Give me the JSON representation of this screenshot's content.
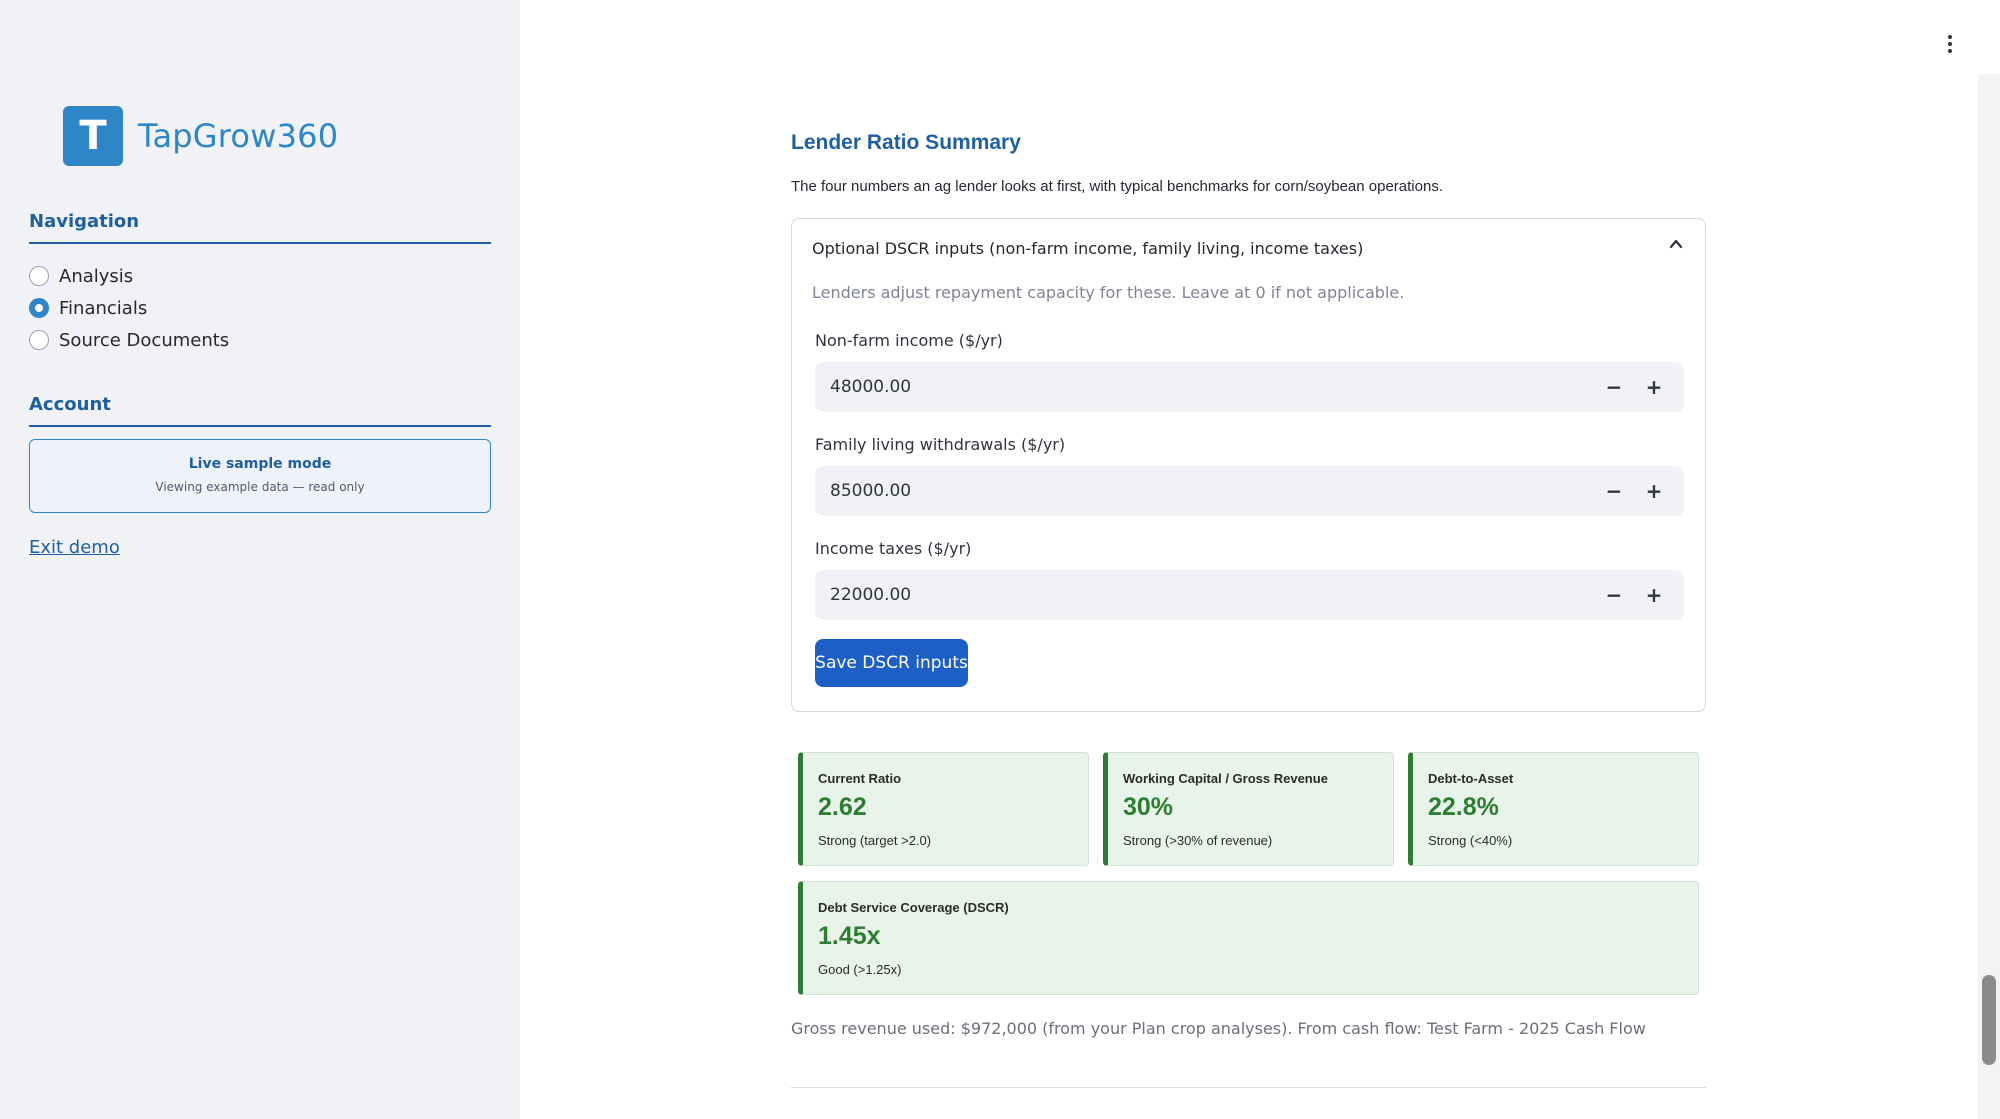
{
  "app": {
    "logo_letter": "T",
    "name": "TapGrow360"
  },
  "sidebar": {
    "navigation_heading": "Navigation",
    "nav_items": [
      {
        "label": "Analysis",
        "selected": false
      },
      {
        "label": "Financials",
        "selected": true
      },
      {
        "label": "Source Documents",
        "selected": false
      }
    ],
    "account_heading": "Account",
    "demo_box": {
      "title": "Live sample mode",
      "subtitle": "Viewing example data — read only"
    },
    "exit_link": "Exit demo"
  },
  "main": {
    "title": "Lender Ratio Summary",
    "description": "The four numbers an ag lender looks at first, with typical benchmarks for corn/soybean operations.",
    "expander": {
      "header": "Optional DSCR inputs (non-farm income, family living, income taxes)",
      "expanded": true,
      "caption": "Lenders adjust repayment capacity for these. Leave at 0 if not applicable.",
      "fields": [
        {
          "label": "Non-farm income ($/yr)",
          "value": "48000.00"
        },
        {
          "label": "Family living withdrawals ($/yr)",
          "value": "85000.00"
        },
        {
          "label": "Income taxes ($/yr)",
          "value": "22000.00"
        }
      ],
      "save_label": "Save DSCR inputs"
    },
    "cards": [
      {
        "title": "Current Ratio",
        "value": "2.62",
        "note": "Strong (target >2.0)"
      },
      {
        "title": "Working Capital / Gross Revenue",
        "value": "30%",
        "note": "Strong (>30% of revenue)"
      },
      {
        "title": "Debt-to-Asset",
        "value": "22.8%",
        "note": "Strong (<40%)"
      },
      {
        "title": "Debt Service Coverage (DSCR)",
        "value": "1.45x",
        "note": "Good (>1.25x)"
      }
    ],
    "footnote": "Gross revenue used: $972,000 (from your Plan crop analyses). From cash flow: Test Farm - 2025 Cash Flow"
  },
  "colors": {
    "brand": "#2e86c9",
    "heading": "#1f5fa0",
    "button": "#1d5fc4",
    "good": "#2e7d32",
    "card_bg": "#e8f4ea"
  },
  "icons": {
    "menu": "kebab-menu-icon",
    "expander": "chevron-up-icon",
    "decrement": "minus-icon",
    "increment": "plus-icon"
  }
}
